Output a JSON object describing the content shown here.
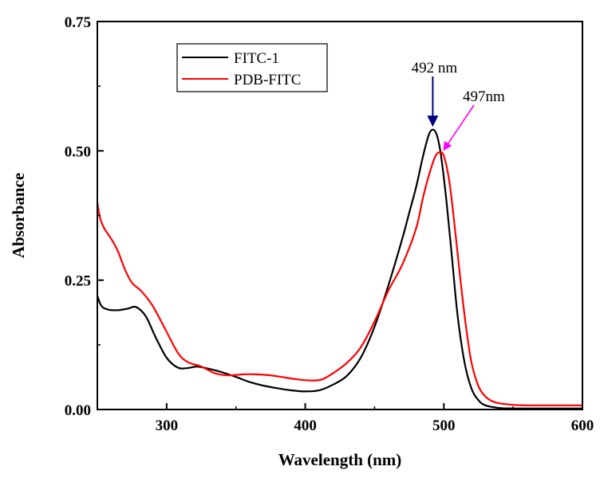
{
  "chart_data": {
    "type": "line",
    "xlabel": "Wavelength (nm)",
    "ylabel": "Absorbance",
    "xlim": [
      250,
      600
    ],
    "ylim": [
      0,
      0.75
    ],
    "x_ticks": [
      300,
      400,
      500,
      600
    ],
    "x_tick_labels": [
      "300",
      "400",
      "500",
      "600"
    ],
    "y_ticks": [
      0,
      0.25,
      0.5,
      0.75
    ],
    "y_tick_labels": [
      "0.00",
      "0.25",
      "0.50",
      "0.75"
    ],
    "grid": false,
    "legend_position": "top-left",
    "series": [
      {
        "name": "FITC-1",
        "color": "#000000",
        "x": [
          250,
          253,
          258,
          265,
          272,
          278,
          285,
          292,
          300,
          308,
          315,
          322,
          330,
          340,
          350,
          360,
          370,
          380,
          390,
          400,
          410,
          420,
          430,
          440,
          450,
          460,
          470,
          475,
          480,
          485,
          489,
          492,
          495,
          498,
          502,
          506,
          510,
          515,
          520,
          525,
          530,
          540,
          550,
          560,
          580,
          600
        ],
        "y": [
          0.22,
          0.2,
          0.193,
          0.192,
          0.195,
          0.198,
          0.18,
          0.14,
          0.1,
          0.081,
          0.08,
          0.083,
          0.079,
          0.072,
          0.063,
          0.053,
          0.046,
          0.041,
          0.037,
          0.035,
          0.037,
          0.048,
          0.065,
          0.1,
          0.16,
          0.24,
          0.33,
          0.38,
          0.43,
          0.49,
          0.53,
          0.541,
          0.53,
          0.49,
          0.4,
          0.29,
          0.18,
          0.09,
          0.04,
          0.018,
          0.008,
          0.003,
          0.002,
          0.002,
          0.002,
          0.002
        ]
      },
      {
        "name": "PDB-FITC",
        "color": "#ff0000",
        "x": [
          250,
          252,
          255,
          260,
          265,
          270,
          275,
          282,
          290,
          300,
          308,
          315,
          325,
          335,
          345,
          355,
          365,
          375,
          385,
          395,
          405,
          412,
          420,
          430,
          440,
          450,
          460,
          470,
          480,
          485,
          490,
          494,
          497,
          500,
          504,
          508,
          512,
          516,
          520,
          525,
          530,
          535,
          540,
          550,
          560,
          580,
          600
        ],
        "y": [
          0.4,
          0.37,
          0.35,
          0.33,
          0.305,
          0.27,
          0.245,
          0.228,
          0.2,
          0.15,
          0.11,
          0.092,
          0.083,
          0.07,
          0.066,
          0.068,
          0.068,
          0.066,
          0.062,
          0.058,
          0.056,
          0.058,
          0.07,
          0.09,
          0.12,
          0.17,
          0.23,
          0.28,
          0.35,
          0.41,
          0.46,
          0.49,
          0.497,
          0.49,
          0.44,
          0.35,
          0.25,
          0.16,
          0.09,
          0.045,
          0.025,
          0.016,
          0.012,
          0.009,
          0.008,
          0.008,
          0.008
        ]
      }
    ],
    "annotations": [
      {
        "text": "492 nm",
        "target_x": 492,
        "target_y": 0.541,
        "arrow_color": "#000080"
      },
      {
        "text": "497nm",
        "target_x": 497,
        "target_y": 0.497,
        "arrow_color": "#ff00ff"
      }
    ]
  }
}
